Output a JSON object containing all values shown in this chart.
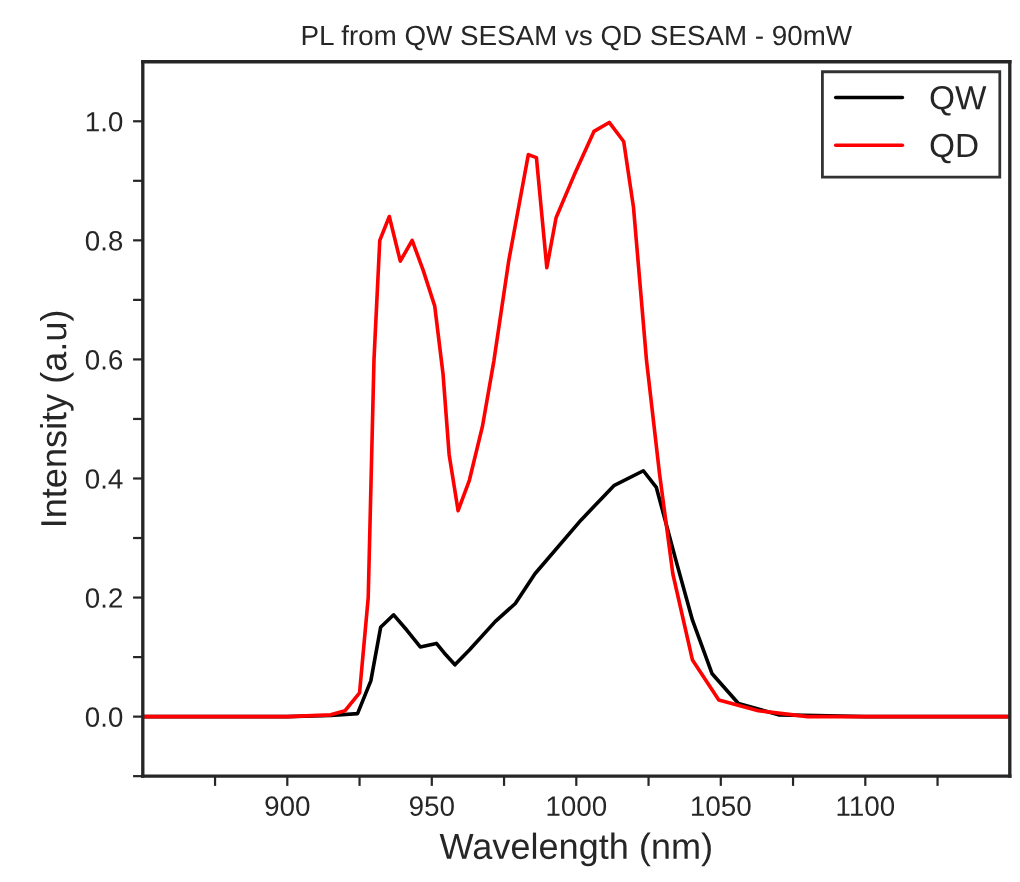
{
  "chart_data": {
    "type": "line",
    "title": "PL from QW SESAM vs QD SESAM - 90mW",
    "xlabel": "Wavelength (nm)",
    "ylabel": "Intensity (a.u)",
    "xlim": [
      850,
      1150
    ],
    "ylim": [
      -0.1,
      1.1
    ],
    "xticks": [
      {
        "value": 875,
        "label": null
      },
      900,
      {
        "value": 925,
        "label": null
      },
      950,
      {
        "value": 975,
        "label": null
      },
      1000,
      {
        "value": 1025,
        "label": null
      },
      1050,
      {
        "value": 1075,
        "label": null
      },
      1100,
      {
        "value": 1125,
        "label": null
      }
    ],
    "yticks": [
      {
        "value": -0.1,
        "label": null
      },
      "0.0",
      {
        "value": 0.1,
        "label": null
      },
      0.2,
      {
        "value": 0.3,
        "label": null
      },
      0.4,
      {
        "value": 0.5,
        "label": null
      },
      0.6,
      {
        "value": 0.7,
        "label": null
      },
      0.8,
      {
        "value": 0.9,
        "label": null
      },
      "1.0"
    ],
    "legend": "top right",
    "grid": false,
    "marker": "none",
    "line_style": "solid",
    "series": [
      {
        "name": "QW",
        "color": "#000000",
        "x": [
          850,
          900,
          915,
          924.3,
          928.9,
          932.3,
          936.8,
          941.4,
          946,
          951.6,
          954.3,
          958,
          963,
          972,
          978.9,
          985.7,
          1001.6,
          1013,
          1023.2,
          1027.7,
          1034.5,
          1040.2,
          1047,
          1056.1,
          1070,
          1100,
          1150
        ],
        "values": [
          0,
          0,
          0.002,
          0.005,
          0.06,
          0.15,
          0.171,
          0.145,
          0.117,
          0.123,
          0.107,
          0.087,
          0.112,
          0.16,
          0.19,
          0.24,
          0.33,
          0.388,
          0.413,
          0.385,
          0.262,
          0.162,
          0.072,
          0.022,
          0.003,
          0,
          0
        ]
      },
      {
        "name": "QD",
        "color": "#ff0000",
        "x": [
          850,
          900,
          915,
          920,
          925,
          928,
          930,
          932,
          935.3,
          939.1,
          943.2,
          947,
          951,
          953.9,
          956,
          959.1,
          963,
          967.5,
          971.5,
          976.6,
          983.4,
          986.2,
          989.8,
          993,
          999.3,
          1006.1,
          1011.4,
          1016.4,
          1019.8,
          1024.3,
          1028.8,
          1033.4,
          1040.2,
          1049.3,
          1063,
          1080,
          1150
        ],
        "values": [
          0,
          0,
          0.003,
          0.01,
          0.04,
          0.2,
          0.6,
          0.8,
          0.84,
          0.765,
          0.8,
          0.75,
          0.69,
          0.575,
          0.44,
          0.346,
          0.397,
          0.487,
          0.598,
          0.765,
          0.944,
          0.939,
          0.754,
          0.838,
          0.91,
          0.983,
          0.998,
          0.966,
          0.855,
          0.598,
          0.408,
          0.24,
          0.095,
          0.028,
          0.01,
          0,
          0
        ]
      }
    ]
  }
}
